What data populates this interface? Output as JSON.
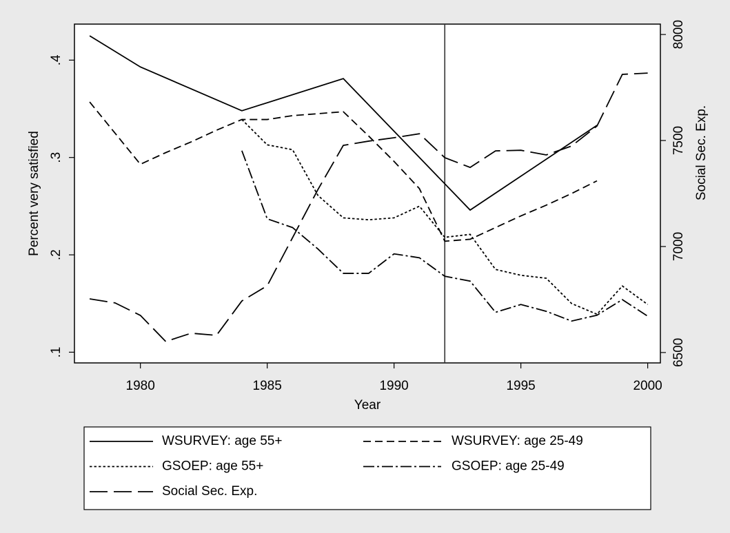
{
  "chart_data": {
    "type": "line",
    "xlabel": "Year",
    "ylabel": "Percent very satisfied",
    "y2label": "Social Sec. Exp.",
    "xlim": [
      1977.4,
      2000.5
    ],
    "xticks": [
      1980,
      1985,
      1990,
      1995,
      2000
    ],
    "ylim": [
      0.089,
      0.437
    ],
    "yticks": [
      {
        "value": 0.1,
        "label": ".1"
      },
      {
        "value": 0.2,
        "label": ".2"
      },
      {
        "value": 0.3,
        "label": ".3"
      },
      {
        "value": 0.4,
        "label": ".4"
      }
    ],
    "y2lim": [
      6451,
      8049
    ],
    "y2ticks": [
      6500,
      7000,
      7500,
      8000
    ],
    "xline": 1992,
    "series": [
      {
        "name": "WSURVEY: age 55+",
        "color": "#000000",
        "dash": "solid",
        "x": [
          1978,
          1980,
          1984,
          1988,
          1993,
          1998
        ],
        "values": [
          0.425,
          0.393,
          0.348,
          0.381,
          0.246,
          0.333
        ]
      },
      {
        "name": "WSURVEY: age 25-49",
        "color": "#000000",
        "dash": "dash",
        "x": [
          1978,
          1980,
          1981,
          1982,
          1983,
          1984,
          1985,
          1986,
          1987,
          1988,
          1989,
          1990,
          1991,
          1992,
          1993,
          1994,
          1995,
          1996,
          1997,
          1998
        ],
        "values": [
          0.357,
          0.293,
          0.305,
          0.316,
          0.328,
          0.339,
          0.339,
          0.343,
          0.345,
          0.347,
          0.322,
          0.296,
          0.268,
          0.214,
          0.216,
          0.228,
          0.24,
          0.251,
          0.263,
          0.276
        ]
      },
      {
        "name": "GSOEP: age 55+",
        "color": "#000000",
        "dash": "dot",
        "x": [
          1984,
          1985,
          1986,
          1987,
          1988,
          1989,
          1990,
          1991,
          1992,
          1993,
          1994,
          1995,
          1996,
          1997,
          1998,
          1999,
          2000
        ],
        "values": [
          0.339,
          0.313,
          0.308,
          0.261,
          0.238,
          0.236,
          0.238,
          0.25,
          0.218,
          0.221,
          0.185,
          0.179,
          0.176,
          0.15,
          0.139,
          0.168,
          0.149
        ]
      },
      {
        "name": "GSOEP: age 25-49",
        "color": "#000000",
        "dash": "dashdot",
        "x": [
          1984,
          1985,
          1986,
          1987,
          1988,
          1989,
          1990,
          1991,
          1992,
          1993,
          1994,
          1995,
          1996,
          1997,
          1998,
          1999,
          2000
        ],
        "values": [
          0.307,
          0.237,
          0.228,
          0.206,
          0.181,
          0.181,
          0.201,
          0.197,
          0.178,
          0.173,
          0.141,
          0.149,
          0.142,
          0.132,
          0.138,
          0.154,
          0.137
        ]
      },
      {
        "name": "Social Sec. Exp.",
        "color": "#000000",
        "dash": "longdash",
        "axis": "y2",
        "x": [
          1978,
          1979,
          1980,
          1981,
          1982,
          1983,
          1984,
          1985,
          1986,
          1987,
          1988,
          1989,
          1990,
          1991,
          1992,
          1993,
          1994,
          1995,
          1996,
          1997,
          1998,
          1999,
          2000
        ],
        "values": [
          6753,
          6734,
          6675,
          6552,
          6591,
          6581,
          6743,
          6815,
          7042,
          7269,
          7477,
          7497,
          7513,
          7532,
          7419,
          7373,
          7451,
          7454,
          7432,
          7474,
          7568,
          7812,
          7818
        ]
      }
    ]
  }
}
